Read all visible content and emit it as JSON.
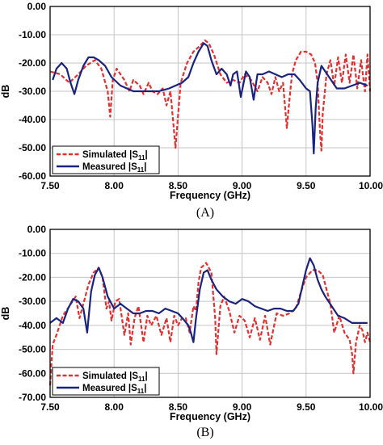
{
  "chart_data": [
    {
      "type": "line",
      "panel_label": "(A)",
      "xlabel": "Frequency (GHz)",
      "ylabel": "dB",
      "xlim": [
        7.5,
        10.0
      ],
      "ylim": [
        -60,
        0
      ],
      "x_ticks": [
        "7.50",
        "8.00",
        "8.50",
        "9.00",
        "9.50",
        "10.00"
      ],
      "y_ticks": [
        "0.00",
        "-10.00",
        "-20.00",
        "-30.00",
        "-40.00",
        "-50.00",
        "-60.00"
      ],
      "grid": true,
      "legend_position": "bottom-left",
      "series": [
        {
          "name": "Simulated |S11|",
          "legend_main": "Simulated |S",
          "legend_sub": "11",
          "color": "#e03030",
          "style": "dashed",
          "x": [
            7.5,
            7.58,
            7.65,
            7.72,
            7.78,
            7.85,
            7.9,
            7.95,
            7.97,
            7.99,
            8.02,
            8.08,
            8.12,
            8.15,
            8.2,
            8.23,
            8.27,
            8.3,
            8.34,
            8.38,
            8.41,
            8.44,
            8.46,
            8.48,
            8.52,
            8.57,
            8.62,
            8.67,
            8.71,
            8.74,
            8.78,
            8.83,
            8.88,
            8.93,
            8.98,
            9.02,
            9.07,
            9.12,
            9.16,
            9.2,
            9.23,
            9.26,
            9.29,
            9.32,
            9.35,
            9.37,
            9.39,
            9.42,
            9.46,
            9.5,
            9.54,
            9.57,
            9.59,
            9.61,
            9.62,
            9.63,
            9.66,
            9.69,
            9.72,
            9.75,
            9.78,
            9.81,
            9.84,
            9.87,
            9.9,
            9.93,
            9.96,
            9.98,
            10.0
          ],
          "y": [
            -23,
            -24,
            -27,
            -24,
            -21,
            -19,
            -22,
            -30,
            -39,
            -26,
            -22,
            -26,
            -30,
            -26,
            -28,
            -31,
            -27,
            -30,
            -31,
            -29,
            -35,
            -30,
            -40,
            -50,
            -27,
            -20,
            -16,
            -14,
            -12,
            -13,
            -17,
            -24,
            -27,
            -26,
            -27,
            -24,
            -26,
            -30,
            -25,
            -27,
            -31,
            -25,
            -30,
            -27,
            -43,
            -33,
            -24,
            -19,
            -16,
            -16,
            -17,
            -20,
            -27,
            -45,
            -51,
            -38,
            -24,
            -19,
            -28,
            -18,
            -27,
            -17,
            -27,
            -17,
            -29,
            -19,
            -30,
            -17,
            -30
          ]
        },
        {
          "name": "Measured |S11|",
          "legend_main": "Measured |S",
          "legend_sub": "11",
          "color": "#1a237e",
          "style": "solid",
          "x": [
            7.52,
            7.55,
            7.59,
            7.63,
            7.66,
            7.69,
            7.72,
            7.76,
            7.8,
            7.84,
            7.88,
            7.93,
            7.98,
            8.05,
            8.15,
            8.25,
            8.35,
            8.43,
            8.48,
            8.53,
            8.58,
            8.62,
            8.66,
            8.7,
            8.73,
            8.76,
            8.8,
            8.84,
            8.88,
            8.91,
            8.93,
            8.96,
            8.99,
            9.03,
            9.06,
            9.09,
            9.12,
            9.16,
            9.21,
            9.26,
            9.31,
            9.36,
            9.41,
            9.45,
            9.5,
            9.53,
            9.55,
            9.56,
            9.575,
            9.59,
            9.62,
            9.68,
            9.74,
            9.8,
            9.86,
            9.92,
            9.98
          ],
          "y": [
            -26,
            -22,
            -20,
            -22,
            -27,
            -31,
            -26,
            -21,
            -18,
            -18,
            -19,
            -21,
            -25,
            -28,
            -30,
            -30,
            -30,
            -29,
            -28,
            -27,
            -25,
            -20,
            -16,
            -13,
            -14,
            -19,
            -24,
            -22,
            -24,
            -28,
            -24,
            -23,
            -32,
            -23,
            -25,
            -33,
            -24,
            -24,
            -23,
            -24,
            -25,
            -24,
            -24,
            -26,
            -29,
            -30,
            -42,
            -52,
            -36,
            -27,
            -21,
            -25,
            -29,
            -29,
            -28,
            -27,
            -28
          ]
        }
      ]
    },
    {
      "type": "line",
      "panel_label": "(B)",
      "xlabel": "Frequency (GHz)",
      "ylabel": "dB",
      "xlim": [
        7.5,
        10.0
      ],
      "ylim": [
        -70,
        0
      ],
      "x_ticks": [
        "7.50",
        "8.00",
        "8.50",
        "9.00",
        "9.50",
        "10.00"
      ],
      "y_ticks": [
        "0.00",
        "-10.00",
        "-20.00",
        "-30.00",
        "-40.00",
        "-50.00",
        "-60.00",
        "-70.00"
      ],
      "grid": true,
      "legend_position": "bottom-left",
      "series": [
        {
          "name": "Simulated |S11|",
          "legend_main": "Simulated |S",
          "legend_sub": "11",
          "color": "#e03030",
          "style": "dashed",
          "x": [
            7.5,
            7.52,
            7.55,
            7.6,
            7.65,
            7.7,
            7.73,
            7.77,
            7.8,
            7.84,
            7.88,
            7.91,
            7.94,
            7.96,
            7.98,
            8.01,
            8.04,
            8.08,
            8.11,
            8.13,
            8.16,
            8.19,
            8.23,
            8.26,
            8.29,
            8.33,
            8.37,
            8.41,
            8.44,
            8.47,
            8.5,
            8.53,
            8.56,
            8.59,
            8.62,
            8.64,
            8.66,
            8.68,
            8.72,
            8.76,
            8.79,
            8.8,
            8.83,
            8.86,
            8.9,
            8.94,
            8.98,
            9.02,
            9.06,
            9.1,
            9.14,
            9.18,
            9.22,
            9.27,
            9.32,
            9.37,
            9.42,
            9.46,
            9.5,
            9.55,
            9.59,
            9.63,
            9.66,
            9.69,
            9.72,
            9.76,
            9.8,
            9.84,
            9.86,
            9.87,
            9.89,
            9.92,
            9.94,
            9.96,
            9.98,
            10.0
          ],
          "y": [
            -65,
            -48,
            -44,
            -36,
            -32,
            -28,
            -37,
            -29,
            -23,
            -18,
            -16,
            -20,
            -33,
            -30,
            -38,
            -30,
            -29,
            -44,
            -35,
            -48,
            -37,
            -32,
            -47,
            -36,
            -40,
            -36,
            -44,
            -37,
            -47,
            -36,
            -40,
            -37,
            -37,
            -43,
            -32,
            -34,
            -22,
            -16,
            -14,
            -18,
            -37,
            -52,
            -32,
            -28,
            -34,
            -43,
            -36,
            -38,
            -45,
            -37,
            -46,
            -36,
            -48,
            -35,
            -36,
            -35,
            -33,
            -26,
            -20,
            -17,
            -17,
            -19,
            -25,
            -31,
            -43,
            -36,
            -43,
            -46,
            -52,
            -60,
            -47,
            -40,
            -42,
            -47,
            -43,
            -47
          ]
        },
        {
          "name": "Measured |S11|",
          "legend_main": "Measured |S",
          "legend_sub": "11",
          "color": "#1a237e",
          "style": "solid",
          "x": [
            7.5,
            7.55,
            7.6,
            7.64,
            7.68,
            7.72,
            7.76,
            7.79,
            7.82,
            7.85,
            7.88,
            7.91,
            7.95,
            8.0,
            8.05,
            8.1,
            8.15,
            8.2,
            8.25,
            8.3,
            8.35,
            8.4,
            8.45,
            8.5,
            8.55,
            8.58,
            8.6,
            8.62,
            8.64,
            8.67,
            8.7,
            8.73,
            8.76,
            8.8,
            8.85,
            8.9,
            8.95,
            9.0,
            9.05,
            9.1,
            9.15,
            9.2,
            9.25,
            9.3,
            9.35,
            9.4,
            9.44,
            9.47,
            9.5,
            9.53,
            9.56,
            9.59,
            9.62,
            9.65,
            9.7,
            9.75,
            9.8,
            9.86,
            9.92,
            9.98
          ],
          "y": [
            -39,
            -37,
            -39,
            -33,
            -29,
            -30,
            -33,
            -43,
            -26,
            -19,
            -16,
            -20,
            -28,
            -33,
            -31,
            -33,
            -35,
            -35,
            -34,
            -34,
            -35,
            -33,
            -34,
            -35,
            -38,
            -40,
            -43,
            -47,
            -37,
            -25,
            -18,
            -17,
            -21,
            -25,
            -28,
            -30,
            -31,
            -29,
            -30,
            -32,
            -33,
            -34,
            -33,
            -33,
            -34,
            -34,
            -31,
            -24,
            -17,
            -12,
            -15,
            -21,
            -25,
            -28,
            -32,
            -36,
            -37,
            -39,
            -39,
            -39
          ]
        }
      ]
    }
  ]
}
